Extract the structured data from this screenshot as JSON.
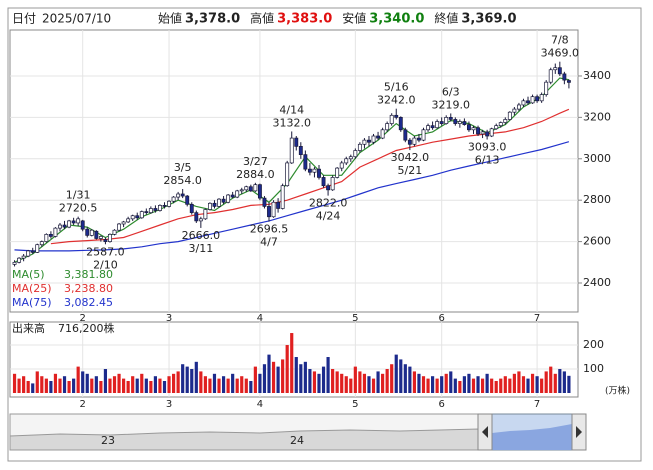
{
  "header": {
    "date_label": "日付",
    "date": "2025/07/10",
    "fields": [
      {
        "label": "始値",
        "value": "3,378.0",
        "color": "#222"
      },
      {
        "label": "高値",
        "value": "3,383.0",
        "color": "#e01010"
      },
      {
        "label": "安値",
        "value": "3,340.0",
        "color": "#108010"
      },
      {
        "label": "終値",
        "value": "3,369.0",
        "color": "#222"
      }
    ]
  },
  "chart_data": {
    "type": "candlestick",
    "ylim": [
      2260,
      3622
    ],
    "yticks": [
      2400,
      2600,
      2800,
      3000,
      3200,
      3400
    ],
    "xlim": [
      -1,
      124
    ],
    "xticks": [
      {
        "value": 15,
        "label": "2"
      },
      {
        "value": 34,
        "label": "3"
      },
      {
        "value": 54,
        "label": "4"
      },
      {
        "value": 75,
        "label": "5"
      },
      {
        "value": 94,
        "label": "6"
      },
      {
        "value": 115,
        "label": "7"
      }
    ],
    "up_color": "#ffffff",
    "down_color": "#1c2a8c",
    "edge_color": "#1a1a3a",
    "candles": [
      [
        2490,
        2510,
        2480,
        2500
      ],
      [
        2500,
        2525,
        2495,
        2520
      ],
      [
        2520,
        2540,
        2505,
        2530
      ],
      [
        2530,
        2560,
        2525,
        2555
      ],
      [
        2555,
        2570,
        2540,
        2548
      ],
      [
        2548,
        2590,
        2545,
        2585
      ],
      [
        2585,
        2605,
        2575,
        2600
      ],
      [
        2600,
        2640,
        2595,
        2635
      ],
      [
        2635,
        2650,
        2615,
        2625
      ],
      [
        2625,
        2670,
        2620,
        2665
      ],
      [
        2665,
        2690,
        2650,
        2680
      ],
      [
        2680,
        2700,
        2660,
        2670
      ],
      [
        2670,
        2705,
        2665,
        2700
      ],
      [
        2700,
        2715,
        2680,
        2690
      ],
      [
        2690,
        2720.5,
        2675,
        2710
      ],
      [
        2700,
        2705,
        2650,
        2660
      ],
      [
        2660,
        2670,
        2620,
        2630
      ],
      [
        2630,
        2660,
        2625,
        2655
      ],
      [
        2650,
        2655,
        2610,
        2615
      ],
      [
        2615,
        2630,
        2600,
        2625
      ],
      [
        2610,
        2620,
        2587,
        2600
      ],
      [
        2600,
        2640,
        2595,
        2635
      ],
      [
        2635,
        2660,
        2630,
        2655
      ],
      [
        2655,
        2690,
        2650,
        2685
      ],
      [
        2685,
        2700,
        2670,
        2695
      ],
      [
        2695,
        2720,
        2690,
        2710
      ],
      [
        2710,
        2730,
        2700,
        2725
      ],
      [
        2725,
        2740,
        2705,
        2715
      ],
      [
        2715,
        2750,
        2710,
        2745
      ],
      [
        2745,
        2760,
        2730,
        2740
      ],
      [
        2740,
        2770,
        2735,
        2760
      ],
      [
        2760,
        2775,
        2740,
        2750
      ],
      [
        2750,
        2780,
        2745,
        2775
      ],
      [
        2775,
        2790,
        2760,
        2770
      ],
      [
        2770,
        2800,
        2765,
        2795
      ],
      [
        2795,
        2820,
        2785,
        2815
      ],
      [
        2815,
        2840,
        2800,
        2830
      ],
      [
        2830,
        2854,
        2810,
        2820
      ],
      [
        2820,
        2825,
        2770,
        2780
      ],
      [
        2780,
        2790,
        2730,
        2740
      ],
      [
        2740,
        2750,
        2690,
        2700
      ],
      [
        2700,
        2720,
        2666,
        2710
      ],
      [
        2710,
        2760,
        2705,
        2755
      ],
      [
        2755,
        2790,
        2750,
        2785
      ],
      [
        2785,
        2800,
        2760,
        2770
      ],
      [
        2770,
        2810,
        2765,
        2805
      ],
      [
        2805,
        2820,
        2780,
        2790
      ],
      [
        2790,
        2830,
        2785,
        2825
      ],
      [
        2825,
        2840,
        2810,
        2815
      ],
      [
        2815,
        2850,
        2810,
        2845
      ],
      [
        2845,
        2860,
        2830,
        2850
      ],
      [
        2850,
        2870,
        2840,
        2865
      ],
      [
        2865,
        2875,
        2840,
        2845
      ],
      [
        2845,
        2884,
        2840,
        2875
      ],
      [
        2875,
        2880,
        2800,
        2810
      ],
      [
        2810,
        2820,
        2760,
        2770
      ],
      [
        2770,
        2790,
        2696.5,
        2720
      ],
      [
        2720,
        2800,
        2715,
        2790
      ],
      [
        2790,
        2810,
        2740,
        2760
      ],
      [
        2760,
        2880,
        2755,
        2870
      ],
      [
        2870,
        2990,
        2865,
        2980
      ],
      [
        2980,
        3132,
        2975,
        3100
      ],
      [
        3100,
        3110,
        3040,
        3060
      ],
      [
        3060,
        3080,
        3000,
        3020
      ],
      [
        3020,
        3040,
        2940,
        2950
      ],
      [
        2950,
        2980,
        2920,
        2935
      ],
      [
        2935,
        2960,
        2910,
        2950
      ],
      [
        2950,
        2970,
        2900,
        2910
      ],
      [
        2910,
        2920,
        2860,
        2870
      ],
      [
        2870,
        2880,
        2822,
        2850
      ],
      [
        2850,
        2920,
        2845,
        2910
      ],
      [
        2910,
        2960,
        2905,
        2955
      ],
      [
        2955,
        2990,
        2940,
        2980
      ],
      [
        2980,
        3010,
        2970,
        3000
      ],
      [
        3000,
        3020,
        2985,
        3010
      ],
      [
        3010,
        3050,
        3000,
        3040
      ],
      [
        3040,
        3080,
        3030,
        3070
      ],
      [
        3070,
        3100,
        3050,
        3090
      ],
      [
        3090,
        3110,
        3060,
        3080
      ],
      [
        3080,
        3120,
        3070,
        3110
      ],
      [
        3110,
        3130,
        3090,
        3100
      ],
      [
        3100,
        3150,
        3095,
        3140
      ],
      [
        3140,
        3180,
        3130,
        3170
      ],
      [
        3170,
        3220,
        3160,
        3210
      ],
      [
        3210,
        3242,
        3190,
        3200
      ],
      [
        3200,
        3205,
        3130,
        3140
      ],
      [
        3140,
        3150,
        3080,
        3090
      ],
      [
        3090,
        3100,
        3042,
        3070
      ],
      [
        3070,
        3110,
        3060,
        3100
      ],
      [
        3100,
        3120,
        3080,
        3090
      ],
      [
        3090,
        3150,
        3085,
        3140
      ],
      [
        3140,
        3170,
        3130,
        3160
      ],
      [
        3160,
        3180,
        3140,
        3150
      ],
      [
        3150,
        3190,
        3145,
        3180
      ],
      [
        3180,
        3200,
        3160,
        3170
      ],
      [
        3170,
        3210,
        3165,
        3200
      ],
      [
        3200,
        3219,
        3180,
        3190
      ],
      [
        3190,
        3200,
        3160,
        3170
      ],
      [
        3170,
        3190,
        3150,
        3180
      ],
      [
        3180,
        3195,
        3160,
        3165
      ],
      [
        3165,
        3180,
        3130,
        3140
      ],
      [
        3140,
        3160,
        3120,
        3150
      ],
      [
        3150,
        3160,
        3110,
        3120
      ],
      [
        3120,
        3140,
        3100,
        3130
      ],
      [
        3130,
        3140,
        3093,
        3110
      ],
      [
        3110,
        3150,
        3105,
        3145
      ],
      [
        3145,
        3170,
        3140,
        3160
      ],
      [
        3160,
        3180,
        3150,
        3175
      ],
      [
        3175,
        3200,
        3165,
        3190
      ],
      [
        3190,
        3230,
        3185,
        3225
      ],
      [
        3225,
        3250,
        3210,
        3240
      ],
      [
        3240,
        3270,
        3230,
        3260
      ],
      [
        3260,
        3290,
        3250,
        3280
      ],
      [
        3280,
        3300,
        3260,
        3270
      ],
      [
        3270,
        3310,
        3265,
        3300
      ],
      [
        3300,
        3310,
        3270,
        3280
      ],
      [
        3280,
        3320,
        3270,
        3310
      ],
      [
        3310,
        3380,
        3300,
        3370
      ],
      [
        3370,
        3440,
        3360,
        3430
      ],
      [
        3430,
        3460,
        3410,
        3440
      ],
      [
        3440,
        3469,
        3400,
        3410
      ],
      [
        3410,
        3420,
        3360,
        3380
      ],
      [
        3378,
        3383,
        3340,
        3369
      ]
    ],
    "ma_x": [
      0,
      4,
      8,
      12,
      16,
      20,
      24,
      28,
      32,
      36,
      40,
      44,
      48,
      52,
      56,
      60,
      64,
      68,
      72,
      76,
      80,
      84,
      88,
      92,
      96,
      100,
      104,
      108,
      112,
      116,
      120,
      122
    ],
    "series": [
      {
        "name": "MA(5)",
        "legend_value": "3,381.80",
        "color": "#2e8b2e",
        "values": [
          2500,
          2540,
          2610,
          2680,
          2670,
          2620,
          2660,
          2720,
          2755,
          2800,
          2770,
          2750,
          2810,
          2850,
          2790,
          2880,
          3010,
          2920,
          2920,
          3030,
          3090,
          3170,
          3110,
          3130,
          3185,
          3170,
          3125,
          3165,
          3250,
          3300,
          3390,
          3381.8
        ]
      },
      {
        "name": "MA(25)",
        "legend_value": "3,238.80",
        "color": "#e03030",
        "values": [
          null,
          null,
          2590,
          2600,
          2605,
          2610,
          2620,
          2650,
          2680,
          2710,
          2730,
          2740,
          2755,
          2775,
          2780,
          2800,
          2830,
          2860,
          2890,
          2960,
          3000,
          3040,
          3060,
          3080,
          3095,
          3110,
          3120,
          3130,
          3150,
          3180,
          3220,
          3238.8
        ]
      },
      {
        "name": "MA(75)",
        "legend_value": "3,082.45",
        "color": "#2233cc",
        "values": [
          2560,
          2555,
          2555,
          2555,
          2558,
          2560,
          2565,
          2575,
          2590,
          2600,
          2620,
          2640,
          2660,
          2680,
          2700,
          2725,
          2750,
          2775,
          2800,
          2830,
          2860,
          2880,
          2900,
          2920,
          2945,
          2965,
          2985,
          3005,
          3025,
          3045,
          3070,
          3082.45
        ]
      }
    ],
    "highs": [
      {
        "index": 14,
        "date": "1/31",
        "value": 2720.5,
        "label": "2720.5"
      },
      {
        "index": 37,
        "date": "3/5",
        "value": 2854,
        "label": "2854.0"
      },
      {
        "index": 53,
        "date": "3/27",
        "value": 2884,
        "label": "2884.0"
      },
      {
        "index": 61,
        "date": "4/14",
        "value": 3132,
        "label": "3132.0"
      },
      {
        "index": 84,
        "date": "5/16",
        "value": 3242,
        "label": "3242.0"
      },
      {
        "index": 96,
        "date": "6/3",
        "value": 3219,
        "label": "3219.0"
      },
      {
        "index": 120,
        "date": "7/8",
        "value": 3469,
        "label": "3469.0"
      }
    ],
    "lows": [
      {
        "index": 20,
        "date": "2/10",
        "value": 2587,
        "label": "2587.0"
      },
      {
        "index": 41,
        "date": "3/11",
        "value": 2666,
        "label": "2666.0"
      },
      {
        "index": 56,
        "date": "4/7",
        "value": 2696.5,
        "label": "2696.5"
      },
      {
        "index": 69,
        "date": "4/24",
        "value": 2822,
        "label": "2822.0"
      },
      {
        "index": 87,
        "date": "5/21",
        "value": 3042,
        "label": "3042.0"
      },
      {
        "index": 104,
        "date": "6/13",
        "value": 3093,
        "label": "3093.0"
      }
    ],
    "volume": {
      "title": "出来高",
      "latest": "716,200株",
      "unit": "(万株)",
      "up_color": "#e02020",
      "down_color": "#1c2a8c",
      "ylim": [
        0,
        296
      ],
      "yticks": [
        100,
        200
      ],
      "values": [
        80,
        60,
        70,
        50,
        40,
        90,
        70,
        60,
        50,
        80,
        60,
        70,
        50,
        60,
        110,
        90,
        80,
        60,
        70,
        50,
        100,
        60,
        70,
        80,
        60,
        50,
        70,
        60,
        80,
        60,
        50,
        70,
        60,
        50,
        70,
        80,
        90,
        120,
        110,
        100,
        130,
        90,
        70,
        60,
        80,
        60,
        70,
        60,
        80,
        60,
        70,
        60,
        50,
        110,
        80,
        120,
        160,
        130,
        110,
        140,
        200,
        250,
        150,
        120,
        130,
        100,
        90,
        80,
        110,
        150,
        100,
        90,
        80,
        70,
        60,
        110,
        90,
        80,
        70,
        60,
        90,
        80,
        100,
        120,
        160,
        140,
        120,
        110,
        90,
        80,
        70,
        60,
        70,
        60,
        70,
        80,
        90,
        60,
        50,
        70,
        80,
        60,
        70,
        60,
        80,
        60,
        50,
        60,
        70,
        60,
        80,
        90,
        70,
        60,
        80,
        70,
        60,
        90,
        110,
        80,
        100,
        90,
        71.62
      ]
    }
  },
  "navigator": {
    "labels": [
      "23",
      "24"
    ]
  }
}
